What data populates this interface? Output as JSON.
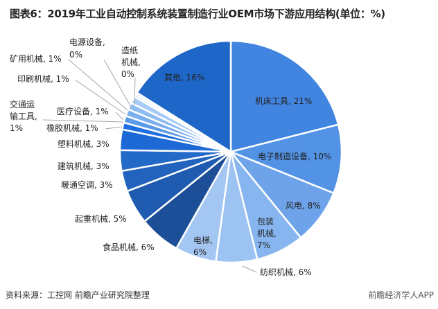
{
  "chart_data": {
    "type": "pie",
    "title": "图表6：2019年工业自动控制系统装置制造行业OEM市场下游应用结构(单位：%)",
    "unit": "%",
    "start": "12 o'clock",
    "direction": "clockwise",
    "slices": [
      {
        "label": "机床工具",
        "value": 21,
        "text": "机床工具, 21%",
        "color": "#4185e0"
      },
      {
        "label": "电子制造设备",
        "value": 10,
        "text": "电子制造设备, 10%",
        "color": "#5393e6"
      },
      {
        "label": "风电",
        "value": 8,
        "text": "风电, 8%",
        "color": "#6ea3ea"
      },
      {
        "label": "包装机械",
        "value": 7,
        "text": [
          "包装",
          "机械,",
          "7%"
        ],
        "color": "#86b5ef"
      },
      {
        "label": "纺织机械",
        "value": 6,
        "text": "纺织机械, 6%",
        "color": "#9dc3f3"
      },
      {
        "label": "电梯",
        "value": 6,
        "text": [
          "电梯,",
          "6%"
        ],
        "color": "#a4c6f2"
      },
      {
        "label": "食品机械",
        "value": 6,
        "text": "食品机械, 6%",
        "color": "#1c4f98"
      },
      {
        "label": "起重机械",
        "value": 5,
        "text": "起重机械, 5%",
        "color": "#1f5bb0"
      },
      {
        "label": "暖通空调",
        "value": 3,
        "text": "暖通空调, 3%",
        "color": "#2163bd"
      },
      {
        "label": "建筑机械",
        "value": 3,
        "text": "建筑机械, 3%",
        "color": "#2369c8"
      },
      {
        "label": "塑料机械",
        "value": 3,
        "text": "塑料机械, 3%",
        "color": "#1d6ad6"
      },
      {
        "label": "橡胶机械",
        "value": 1,
        "text": "橡胶机械, 1%",
        "color": "#1e6fe0"
      },
      {
        "label": "医疗设备",
        "value": 1,
        "text": "医疗设备, 1%",
        "color": "#5a9ae8"
      },
      {
        "label": "交通运输工具",
        "value": 1,
        "text": [
          "交通运",
          "输工具,",
          "1%"
        ],
        "color": "#7aaeee"
      },
      {
        "label": "印刷机械",
        "value": 1,
        "text": "印刷机械, 1%",
        "color": "#8ebbf1"
      },
      {
        "label": "矿用机械",
        "value": 1,
        "text": "矿用机械, 1%",
        "color": "#a8cbf5"
      },
      {
        "label": "电源设备",
        "value": 0,
        "text": [
          "电源设备,",
          "0%"
        ],
        "color": "#c0daf8"
      },
      {
        "label": "造纸机械",
        "value": 0,
        "text": [
          "造纸",
          "机械,",
          "0%"
        ],
        "color": "#d5e6fb"
      },
      {
        "label": "其他",
        "value": 16,
        "text": "其他, 16%",
        "color": "#1f66c9"
      }
    ]
  },
  "footer": {
    "source": "资料来源：工控网 前瞻产业研究院整理",
    "brand": "前瞻经济学人APP"
  }
}
